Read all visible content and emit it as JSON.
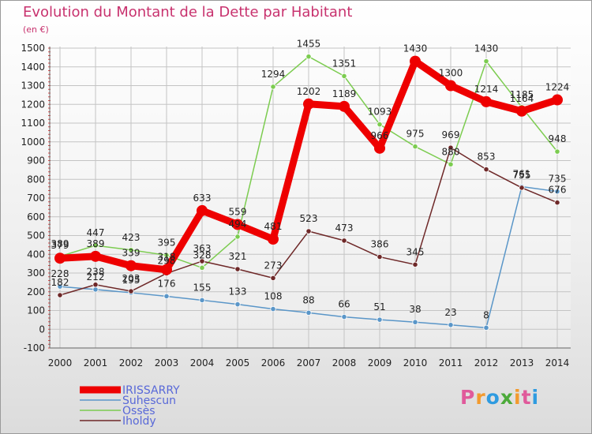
{
  "header": {
    "title": "Evolution du Montant de la Dette par Habitant",
    "subtitle": "(en €)"
  },
  "logo": {
    "text": "Proxiti",
    "colors": [
      "#e05a9b",
      "#f29a2e",
      "#2f9be0",
      "#4caa3a",
      "#f29a2e",
      "#e05a9b",
      "#2f9be0"
    ]
  },
  "chart_data": {
    "type": "line",
    "title": "Evolution du Montant de la Dette par Habitant",
    "subtitle": "(en €)",
    "x": [
      2000,
      2001,
      2002,
      2003,
      2004,
      2005,
      2006,
      2007,
      2008,
      2009,
      2010,
      2011,
      2012,
      2013,
      2014
    ],
    "ylim": [
      -100,
      1500
    ],
    "yticks": [
      -100,
      0,
      100,
      200,
      300,
      400,
      500,
      600,
      700,
      800,
      900,
      1000,
      1100,
      1200,
      1300,
      1400,
      1500
    ],
    "grid": true,
    "legend_position": "bottom-left",
    "series": [
      {
        "name": "IRISSARRY",
        "color": "#ee0000",
        "values": [
          379,
          389,
          339,
          318,
          633,
          559,
          481,
          1202,
          1189,
          966,
          1430,
          1300,
          1214,
          1164,
          1224
        ]
      },
      {
        "name": "Suhescun",
        "color": "#5a96c8",
        "values": [
          228,
          212,
          195,
          176,
          155,
          133,
          108,
          88,
          66,
          51,
          38,
          23,
          8,
          761,
          735
        ]
      },
      {
        "name": "Ossès",
        "color": "#7ccc50",
        "values": [
          389,
          447,
          423,
          395,
          328,
          494,
          1294,
          1455,
          1351,
          1093,
          975,
          880,
          1430,
          1185,
          948
        ]
      },
      {
        "name": "Iholdy",
        "color": "#6e2828",
        "values": [
          182,
          238,
          203,
          298,
          363,
          321,
          273,
          523,
          473,
          386,
          345,
          969,
          853,
          755,
          676
        ]
      }
    ],
    "data_labels": [
      [
        "379",
        "389",
        "339",
        "318",
        "633",
        "559",
        "481",
        "1202",
        "1189",
        "966",
        "1430",
        "1300",
        "1214",
        "1164",
        "1224"
      ],
      [
        "228",
        "212",
        "195",
        "176",
        "155",
        "133",
        "108",
        "88",
        "66",
        "51",
        "38",
        "23",
        "8",
        "761",
        "735"
      ],
      [
        "389",
        "447",
        "423",
        "395",
        "328",
        "494",
        "1294",
        "1455",
        "1351",
        "1093",
        "975",
        "880",
        "1430",
        "1185",
        "948"
      ],
      [
        "182",
        "238",
        "203",
        "298",
        "363",
        "321",
        "273",
        "523",
        "473",
        "386",
        "345",
        "969",
        "853",
        "755",
        "676"
      ]
    ]
  }
}
